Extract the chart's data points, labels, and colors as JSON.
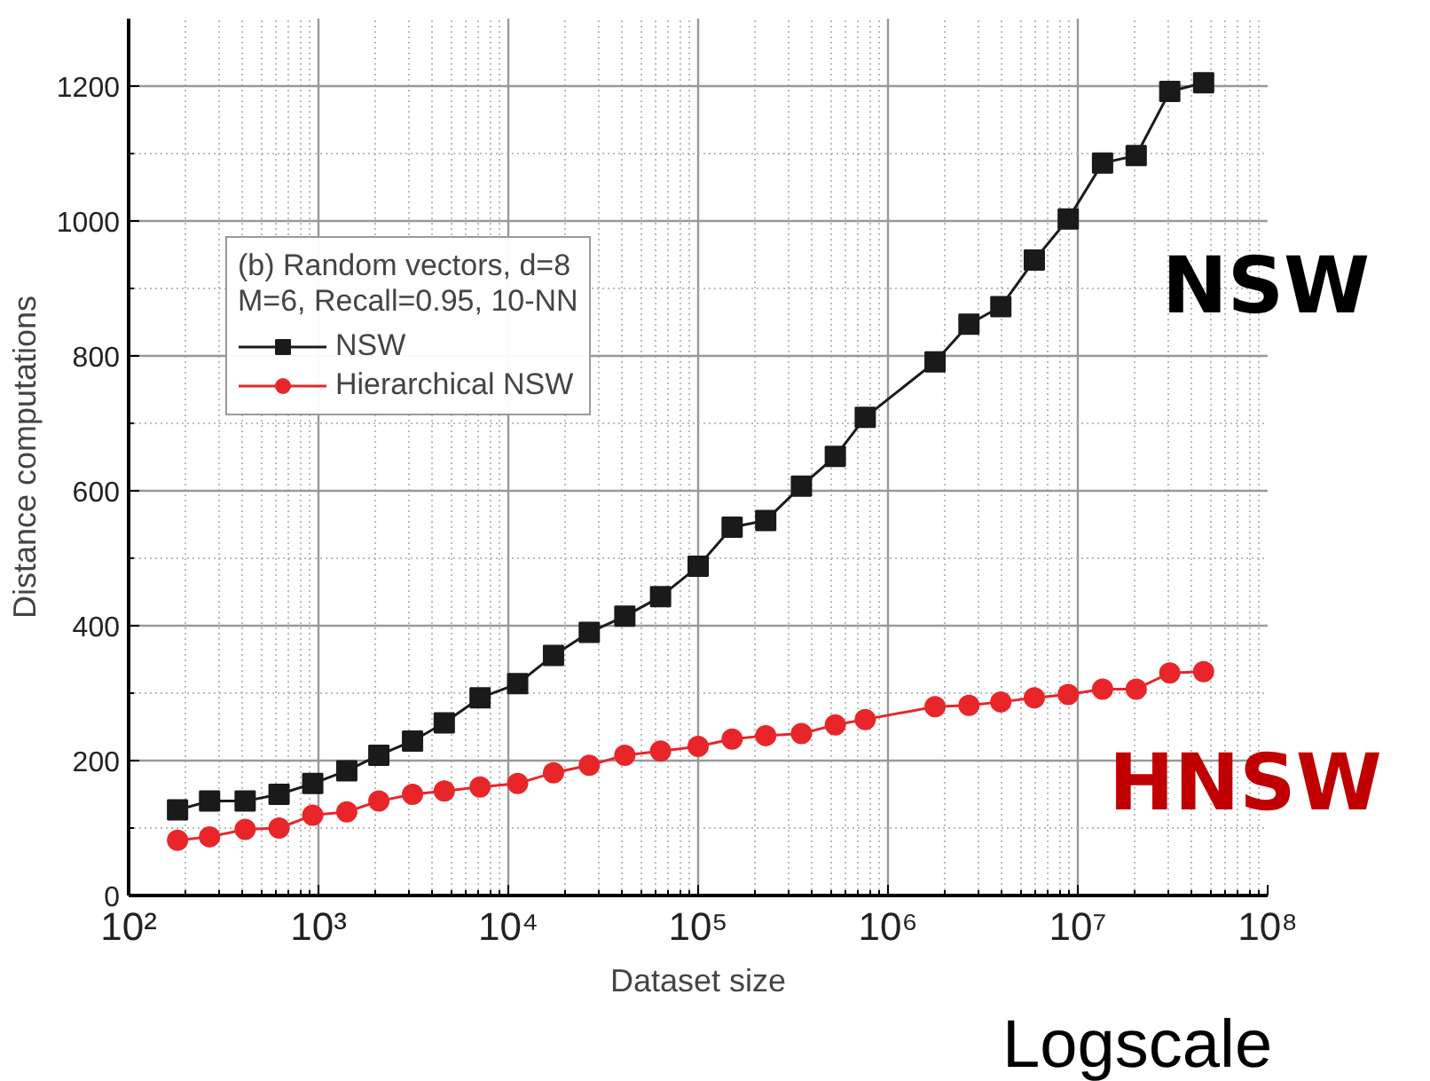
{
  "chart_data": {
    "type": "line",
    "legend_title": "(b) Random vectors, d=8\nM=6, Recall=0.95, 10-NN",
    "xlabel": "Dataset size",
    "ylabel": "Distance computations",
    "x": [
      181,
      267,
      411,
      620,
      933,
      1410,
      2080,
      3130,
      4600,
      7100,
      11200,
      17300,
      26700,
      41100,
      63400,
      100000,
      151000,
      227000,
      350000,
      528000,
      759000,
      1770000,
      2670000,
      3930000,
      5900000,
      8900000,
      13500000,
      20300000,
      30500000,
      46000000
    ],
    "series": [
      {
        "name": "NSW",
        "color": "#1a1a1a",
        "marker": "square",
        "values": [
          127,
          140,
          140,
          150,
          166,
          185,
          208,
          229,
          256,
          293,
          314,
          356,
          390,
          414,
          443,
          488,
          546,
          556,
          607,
          651,
          709,
          791,
          847,
          873,
          942,
          1003,
          1086,
          1097,
          1192,
          1205
        ]
      },
      {
        "name": "Hierarchical NSW",
        "color": "#e8262a",
        "marker": "circle",
        "values": [
          82,
          87,
          98,
          100,
          119,
          124,
          140,
          150,
          155,
          161,
          166,
          182,
          193,
          208,
          214,
          221,
          232,
          237,
          240,
          253,
          261,
          280,
          282,
          287,
          293,
          298,
          306,
          306,
          330,
          332
        ]
      }
    ],
    "annotations": [
      "NSW",
      "HNSW",
      "Logscale"
    ],
    "log": "x",
    "xlim": [
      100,
      100000000
    ],
    "xticks": [
      {
        "value": 100,
        "label": "10²"
      },
      {
        "value": 1000,
        "label": "10³"
      },
      {
        "value": 10000,
        "label": "10⁴"
      },
      {
        "value": 100000,
        "label": "10⁵"
      },
      {
        "value": 1000000,
        "label": "10⁶"
      },
      {
        "value": 10000000,
        "label": "10⁷"
      },
      {
        "value": 100000000,
        "label": "10⁸"
      }
    ],
    "ylim": [
      0,
      1300
    ],
    "yticks": [
      0,
      200,
      400,
      600,
      800,
      1000,
      1200
    ],
    "grid": true,
    "legend": "top left",
    "line_style": "solid"
  }
}
